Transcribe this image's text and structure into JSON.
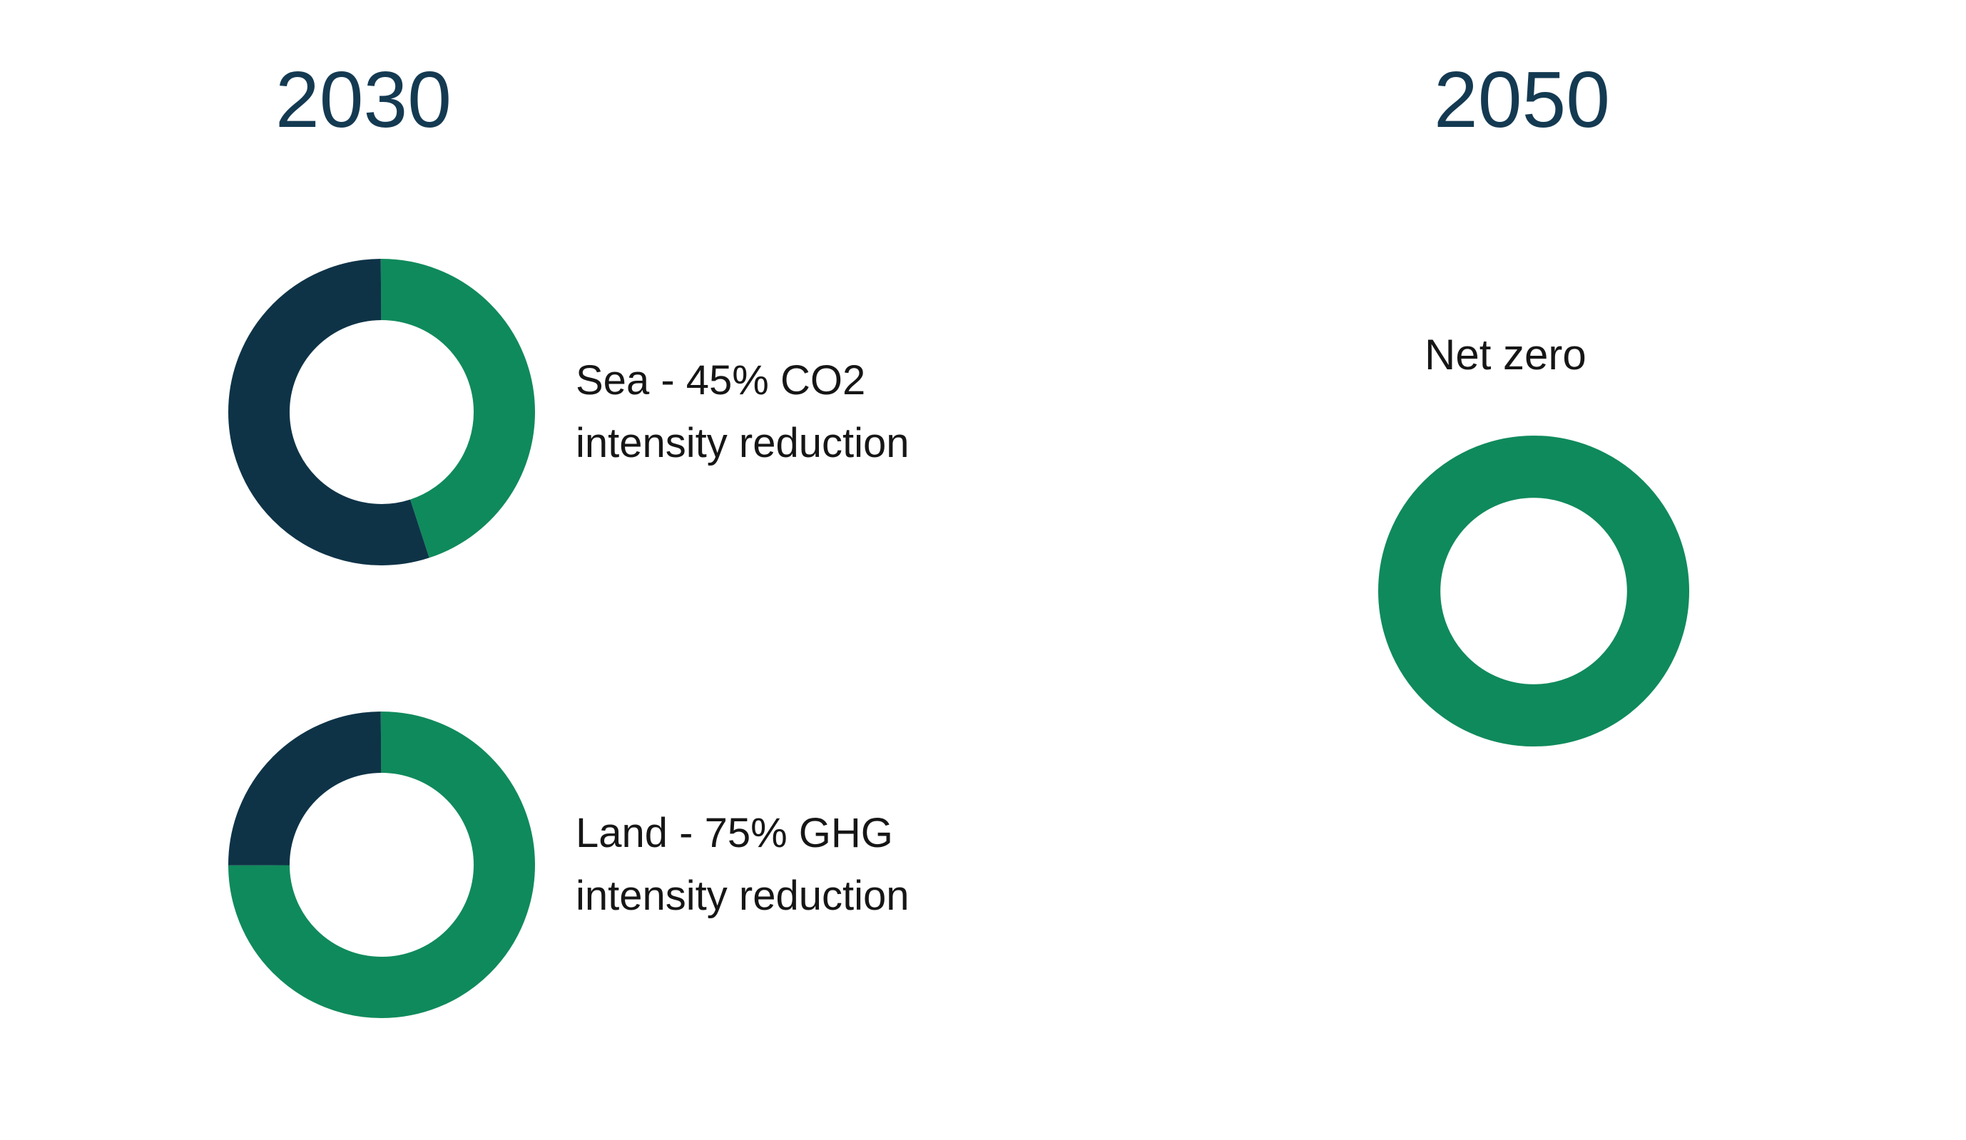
{
  "colors": {
    "navy": "#0E3347",
    "green": "#0F8A5C",
    "heading_navy": "#143A52",
    "label_text": "#161616",
    "background": "#FFFFFF"
  },
  "groups": [
    {
      "heading": "2030",
      "items": [
        {
          "label_lines": [
            "Sea - 45% CO2",
            "intensity reduction"
          ]
        },
        {
          "label_lines": [
            "Land - 75% GHG",
            "intensity reduction"
          ]
        }
      ]
    },
    {
      "heading": "2050",
      "items": [
        {
          "label_lines": [
            "Net zero"
          ]
        }
      ]
    }
  ],
  "chart_data": [
    {
      "type": "pie",
      "variant": "donut",
      "group": "2030",
      "title": "Sea - 45% CO2 intensity reduction",
      "start": "top",
      "direction": "clockwise",
      "slices": [
        {
          "name": "CO2 intensity reduction",
          "value": 45,
          "color": "#0F8A5C"
        },
        {
          "name": "remaining",
          "value": 55,
          "color": "#0E3347"
        }
      ]
    },
    {
      "type": "pie",
      "variant": "donut",
      "group": "2030",
      "title": "Land - 75% GHG intensity reduction",
      "start": "top",
      "direction": "clockwise",
      "slices": [
        {
          "name": "GHG intensity reduction",
          "value": 75,
          "color": "#0F8A5C"
        },
        {
          "name": "remaining",
          "value": 25,
          "color": "#0E3347"
        }
      ]
    },
    {
      "type": "pie",
      "variant": "donut",
      "group": "2050",
      "title": "Net zero",
      "start": "top",
      "direction": "clockwise",
      "slices": [
        {
          "name": "Net zero",
          "value": 100,
          "color": "#0F8A5C"
        }
      ]
    }
  ]
}
